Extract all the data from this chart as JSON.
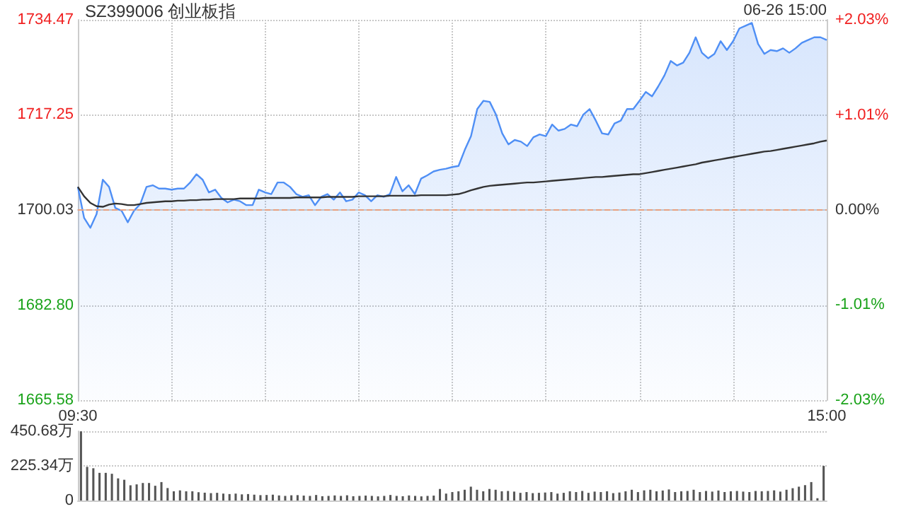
{
  "chart_data": [
    {
      "type": "line",
      "title": "SZ399006 创业板指",
      "annotations": [
        "06-26 15:00"
      ],
      "categories": [
        "09:30",
        null,
        null,
        null,
        null,
        null,
        null,
        null,
        null,
        null,
        null,
        null,
        null,
        null,
        null,
        null,
        null,
        null,
        null,
        null,
        null,
        null,
        null,
        null,
        null,
        null,
        null,
        null,
        null,
        null,
        null,
        null,
        null,
        null,
        null,
        null,
        null,
        null,
        null,
        null,
        null,
        null,
        null,
        null,
        null,
        null,
        null,
        null,
        null,
        null,
        null,
        null,
        null,
        null,
        null,
        null,
        null,
        null,
        null,
        null,
        null,
        null,
        null,
        null,
        null,
        null,
        null,
        null,
        null,
        null,
        null,
        null,
        null,
        null,
        null,
        null,
        null,
        null,
        null,
        null,
        null,
        null,
        null,
        null,
        null,
        null,
        null,
        null,
        null,
        null,
        null,
        null,
        null,
        null,
        null,
        null,
        null,
        null,
        null,
        null,
        null,
        null,
        null,
        null,
        null,
        null,
        null,
        null,
        null,
        null,
        null,
        null,
        null,
        null,
        null,
        null,
        null,
        null,
        null,
        null,
        "15:00"
      ],
      "series": [
        {
          "type": "area",
          "color": "#4f8ff5",
          "values": [
            1704.2,
            1698.6,
            1696.8,
            1699.3,
            1705.5,
            1704.2,
            1700.4,
            1699.9,
            1697.8,
            1699.9,
            1701.1,
            1704.2,
            1704.5,
            1703.9,
            1703.9,
            1703.7,
            1703.9,
            1703.9,
            1705.0,
            1706.5,
            1705.5,
            1703.2,
            1703.7,
            1702.2,
            1701.4,
            1701.9,
            1701.6,
            1700.9,
            1700.9,
            1703.7,
            1703.2,
            1702.9,
            1705.0,
            1705.0,
            1704.2,
            1702.9,
            1702.4,
            1702.7,
            1700.9,
            1702.4,
            1702.9,
            1701.9,
            1703.2,
            1701.6,
            1701.9,
            1703.2,
            1702.7,
            1701.6,
            1702.7,
            1702.4,
            1702.9,
            1706.0,
            1703.4,
            1704.5,
            1702.9,
            1705.7,
            1706.3,
            1707.0,
            1707.3,
            1707.5,
            1707.8,
            1708.0,
            1710.9,
            1713.4,
            1718.3,
            1719.8,
            1719.6,
            1717.3,
            1713.9,
            1711.9,
            1712.7,
            1712.4,
            1711.6,
            1713.2,
            1713.7,
            1713.4,
            1715.5,
            1714.4,
            1714.7,
            1715.5,
            1715.2,
            1717.3,
            1718.3,
            1716.2,
            1713.9,
            1713.7,
            1715.7,
            1716.2,
            1718.3,
            1718.3,
            1719.8,
            1721.4,
            1720.6,
            1722.4,
            1724.4,
            1727.0,
            1726.2,
            1726.7,
            1728.5,
            1731.3,
            1728.5,
            1727.5,
            1728.3,
            1730.6,
            1729.0,
            1730.6,
            1732.9,
            1733.4,
            1733.9,
            1730.1,
            1728.3,
            1729.0,
            1728.8,
            1729.3,
            1728.5,
            1729.3,
            1730.3,
            1730.8,
            1731.3,
            1731.3,
            1730.8
          ]
        },
        {
          "type": "line",
          "color": "#333333",
          "values": [
            1704.2,
            1702.5,
            1701.3,
            1700.7,
            1700.6,
            1701.0,
            1701.2,
            1701.1,
            1700.9,
            1700.9,
            1701.1,
            1701.3,
            1701.4,
            1701.5,
            1701.6,
            1701.6,
            1701.7,
            1701.7,
            1701.8,
            1701.8,
            1701.9,
            1701.9,
            1702.0,
            1702.0,
            1702.0,
            1702.0,
            1702.1,
            1702.1,
            1702.1,
            1702.1,
            1702.2,
            1702.2,
            1702.2,
            1702.2,
            1702.2,
            1702.3,
            1702.3,
            1702.3,
            1702.3,
            1702.3,
            1702.4,
            1702.4,
            1702.4,
            1702.4,
            1702.4,
            1702.5,
            1702.5,
            1702.5,
            1702.5,
            1702.5,
            1702.6,
            1702.6,
            1702.6,
            1702.6,
            1702.6,
            1702.7,
            1702.7,
            1702.7,
            1702.7,
            1702.7,
            1702.8,
            1702.9,
            1703.2,
            1703.6,
            1703.9,
            1704.2,
            1704.4,
            1704.5,
            1704.6,
            1704.7,
            1704.8,
            1704.9,
            1705.0,
            1705.0,
            1705.1,
            1705.2,
            1705.3,
            1705.4,
            1705.5,
            1705.6,
            1705.7,
            1705.8,
            1705.9,
            1706.0,
            1706.0,
            1706.1,
            1706.2,
            1706.3,
            1706.4,
            1706.5,
            1706.5,
            1706.7,
            1706.9,
            1707.1,
            1707.3,
            1707.5,
            1707.7,
            1707.9,
            1708.1,
            1708.3,
            1708.6,
            1708.8,
            1709.0,
            1709.2,
            1709.4,
            1709.6,
            1709.8,
            1710.0,
            1710.2,
            1710.4,
            1710.6,
            1710.7,
            1710.9,
            1711.1,
            1711.3,
            1711.5,
            1711.7,
            1711.9,
            1712.1,
            1712.4,
            1712.6
          ]
        }
      ],
      "ylim": [
        1665.58,
        1734.47
      ],
      "yticks": [
        1665.58,
        {
          "value": 1682.8,
          "label": "1682.80"
        },
        1700.03,
        1717.25,
        1734.47
      ],
      "y2lim": [
        -2.03,
        2.03
      ],
      "y2ticks": [
        {
          "value": -2.03,
          "label": "-2.03%"
        },
        {
          "value": -1.01,
          "label": "-1.01%"
        },
        {
          "value": 0,
          "label": "0.00%"
        },
        {
          "value": 1.01,
          "label": "+1.01%"
        },
        {
          "value": 2.03,
          "label": "+2.03%"
        }
      ],
      "ref_lines": [
        {
          "axis": "y",
          "value": 1700.03,
          "color": "#e8a080",
          "line_style": "dashed"
        }
      ],
      "grid": true,
      "marker": "none"
    },
    {
      "type": "bar",
      "color": "#555555",
      "categories": [
        null,
        null,
        null,
        null,
        null,
        null,
        null,
        null,
        null,
        null,
        null,
        null,
        null,
        null,
        null,
        null,
        null,
        null,
        null,
        null,
        null,
        null,
        null,
        null,
        null,
        null,
        null,
        null,
        null,
        null,
        null,
        null,
        null,
        null,
        null,
        null,
        null,
        null,
        null,
        null,
        null,
        null,
        null,
        null,
        null,
        null,
        null,
        null,
        null,
        null,
        null,
        null,
        null,
        null,
        null,
        null,
        null,
        null,
        null,
        null,
        null,
        null,
        null,
        null,
        null,
        null,
        null,
        null,
        null,
        null,
        null,
        null,
        null,
        null,
        null,
        null,
        null,
        null,
        null,
        null,
        null,
        null,
        null,
        null,
        null,
        null,
        null,
        null,
        null,
        null,
        null,
        null,
        null,
        null,
        null,
        null,
        null,
        null,
        null,
        null,
        null,
        null,
        null,
        null,
        null,
        null,
        null,
        null,
        null,
        null,
        null,
        null,
        null,
        null,
        null,
        null,
        null,
        null,
        null,
        null,
        null
      ],
      "values": [
        450,
        219,
        210,
        180,
        180,
        174,
        144,
        135,
        99,
        105,
        114,
        114,
        96,
        120,
        81,
        60,
        66,
        60,
        60,
        54,
        51,
        48,
        50,
        45,
        42,
        45,
        40,
        42,
        38,
        35,
        36,
        38,
        33,
        30,
        34,
        35,
        32,
        30,
        36,
        28,
        30,
        33,
        30,
        34,
        28,
        30,
        32,
        30,
        27,
        30,
        36,
        30,
        28,
        33,
        30,
        27,
        30,
        32,
        75,
        45,
        55,
        60,
        70,
        90,
        70,
        60,
        75,
        70,
        60,
        62,
        58,
        50,
        55,
        48,
        50,
        52,
        55,
        45,
        50,
        60,
        55,
        62,
        50,
        58,
        55,
        60,
        48,
        52,
        60,
        70,
        55,
        66,
        70,
        60,
        65,
        72,
        55,
        60,
        62,
        70,
        55,
        62,
        58,
        65,
        55,
        60,
        62,
        58,
        55,
        62,
        60,
        62,
        66,
        58,
        70,
        80,
        90,
        100,
        120,
        15,
        225
      ],
      "ylim": [
        0,
        450.68
      ],
      "yticks": [
        0,
        {
          "value": 225.34,
          "label": "225.34万"
        },
        {
          "value": 450.68,
          "label": "450.68万"
        }
      ],
      "grid": "y",
      "tick_labels": "y"
    }
  ]
}
